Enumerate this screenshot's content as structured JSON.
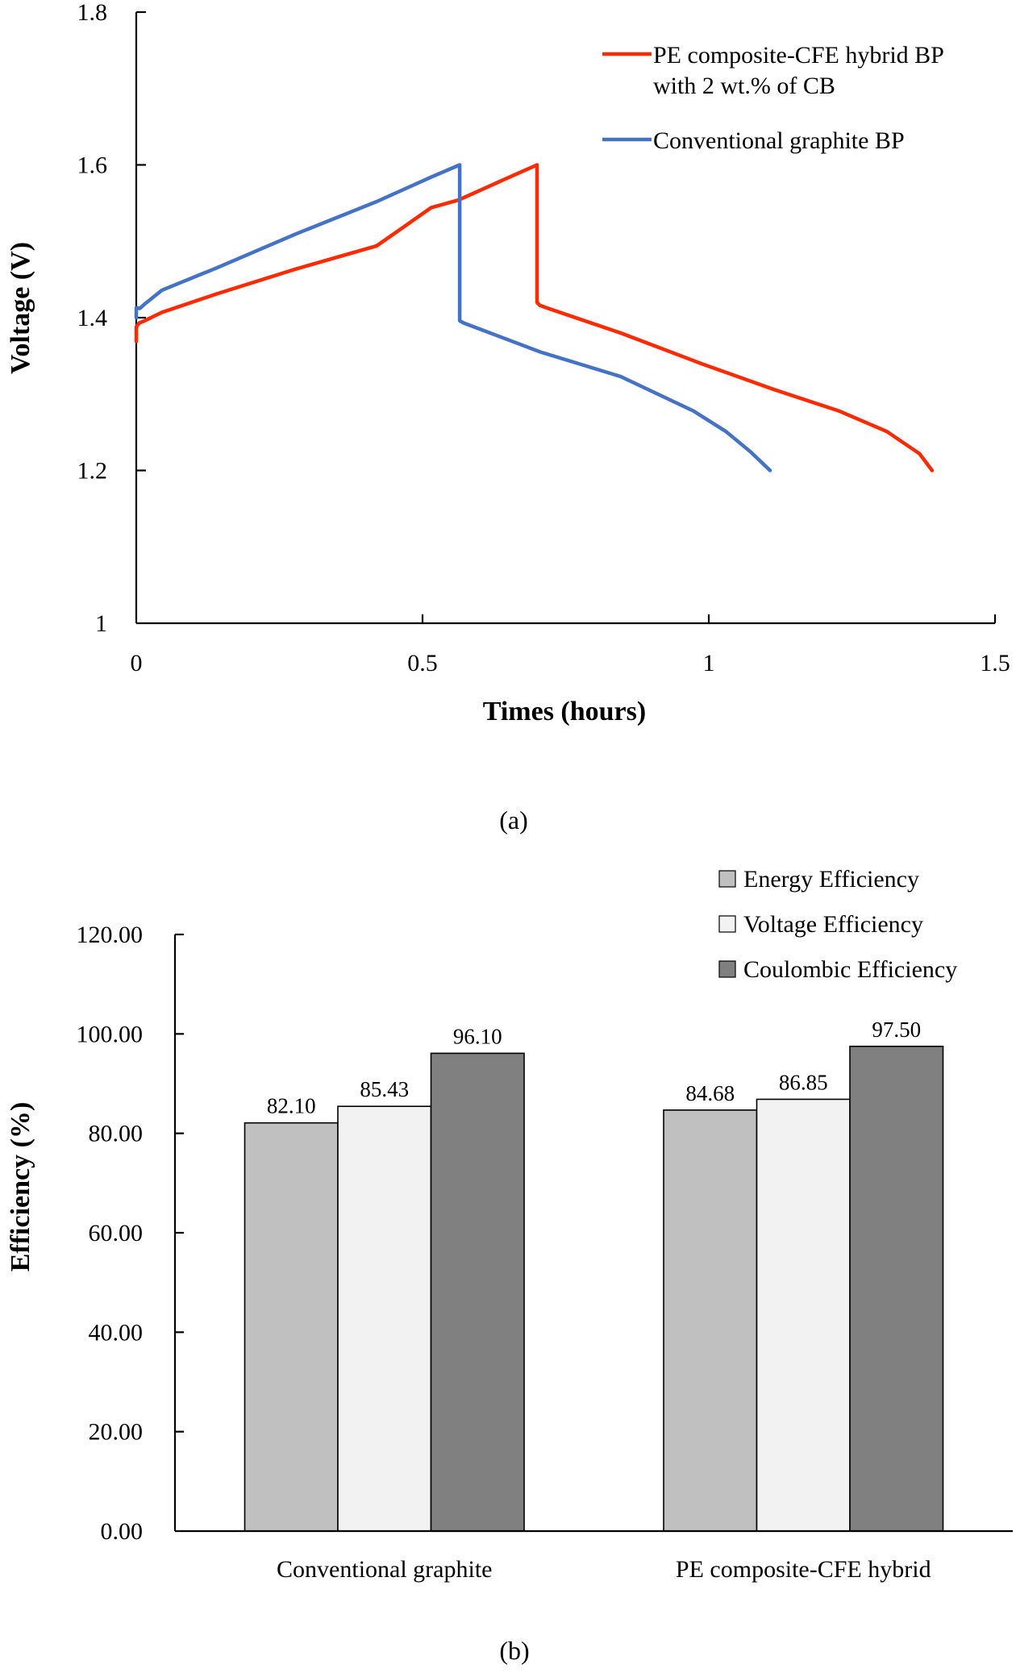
{
  "chart_data": [
    {
      "id": "a",
      "type": "line",
      "panel_label": "(a)",
      "title": "",
      "xlabel": "Times (hours)",
      "ylabel": "Voltage (V)",
      "xlim": [
        0,
        1.5
      ],
      "ylim": [
        1.0,
        1.8
      ],
      "xticks": [
        0,
        0.5,
        1,
        1.5
      ],
      "xtick_labels": [
        "0",
        "0.5",
        "1",
        "1.5"
      ],
      "yticks": [
        1.0,
        1.2,
        1.4,
        1.6,
        1.8
      ],
      "ytick_labels": [
        "1",
        "1.2",
        "1.4",
        "1.6",
        "1.8"
      ],
      "grid": false,
      "legend_position": "top-right",
      "series": [
        {
          "name": "PE composite-CFE hybrid BP with 2 wt.% of CB",
          "legend_lines": [
            "PE composite-CFE hybrid BP",
            "with 2 wt.% of CB"
          ],
          "color": "#ff2a00",
          "x": [
            0.0,
            0.0,
            0.005,
            0.012,
            0.045,
            0.14,
            0.28,
            0.42,
            0.515,
            0.563,
            0.64,
            0.7,
            0.7,
            0.705,
            0.72,
            0.846,
            0.99,
            1.114,
            1.227,
            1.311,
            1.368,
            1.39
          ],
          "y": [
            1.369,
            1.388,
            1.393,
            1.395,
            1.407,
            1.431,
            1.464,
            1.494,
            1.544,
            1.554,
            1.58,
            1.6,
            1.42,
            1.416,
            1.412,
            1.38,
            1.339,
            1.306,
            1.278,
            1.251,
            1.222,
            1.2
          ]
        },
        {
          "name": "Conventional graphite BP",
          "legend_lines": [
            "Conventional graphite BP"
          ],
          "color": "#4472c4",
          "x": [
            0.0,
            0.0,
            0.006,
            0.015,
            0.045,
            0.14,
            0.28,
            0.42,
            0.515,
            0.565,
            0.565,
            0.572,
            0.706,
            0.846,
            0.973,
            1.03,
            1.072,
            1.107
          ],
          "y": [
            1.4,
            1.413,
            1.412,
            1.418,
            1.436,
            1.465,
            1.51,
            1.552,
            1.584,
            1.6,
            1.396,
            1.393,
            1.355,
            1.323,
            1.278,
            1.251,
            1.225,
            1.2
          ]
        }
      ]
    },
    {
      "id": "b",
      "type": "bar",
      "panel_label": "(b)",
      "title": "",
      "xlabel": "",
      "ylabel": "Efficiency (%)",
      "ylim": [
        0,
        120
      ],
      "yticks": [
        0,
        20,
        40,
        60,
        80,
        100,
        120
      ],
      "ytick_labels": [
        "0.00",
        "20.00",
        "40.00",
        "60.00",
        "80.00",
        "100.00",
        "120.00"
      ],
      "grid": false,
      "legend_position": "top-right",
      "categories": [
        "Conventional graphite",
        "PE composite-CFE hybrid"
      ],
      "series": [
        {
          "name": "Energy Efficiency",
          "color": "#c0c0c0",
          "values": [
            82.1,
            84.68
          ],
          "labels": [
            "82.10",
            "84.68"
          ]
        },
        {
          "name": "Voltage Efficiency",
          "color": "#f2f2f2",
          "values": [
            85.43,
            86.85
          ],
          "labels": [
            "85.43",
            "86.85"
          ]
        },
        {
          "name": "Coulombic Efficiency",
          "color": "#808080",
          "values": [
            96.1,
            97.5
          ],
          "labels": [
            "96.10",
            "97.50"
          ]
        }
      ]
    }
  ]
}
